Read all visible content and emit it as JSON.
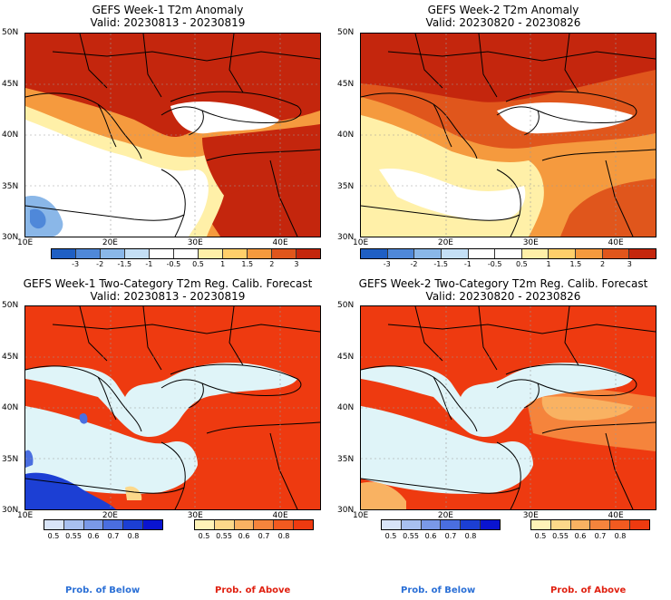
{
  "panels": [
    {
      "title": "GEFS Week-1 T2m Anomaly",
      "valid": "Valid: 20230813 - 20230819"
    },
    {
      "title": "GEFS Week-2 T2m Anomaly",
      "valid": "Valid: 20230820 - 20230826"
    },
    {
      "title": "GEFS Week-1 Two-Category T2m Reg. Calib. Forecast",
      "valid": "Valid: 20230813 - 20230819"
    },
    {
      "title": "GEFS Week-2 Two-Category T2m Reg. Calib. Forecast",
      "valid": "Valid: 20230820 - 20230826"
    }
  ],
  "axes": {
    "lat_labels": [
      "50N",
      "45N",
      "40N",
      "35N",
      "30N"
    ],
    "lon_labels": [
      "10E",
      "20E",
      "30E",
      "40E"
    ]
  },
  "anomaly_colorbar": {
    "ticks": [
      "-3",
      "-2",
      "-1.5",
      "-1",
      "-0.5",
      "0.5",
      "1",
      "1.5",
      "2",
      "3"
    ],
    "colors": [
      "#1f5fc4",
      "#4f88d9",
      "#8ab7e8",
      "#c4dff5",
      "#ffffff",
      "#ffffff",
      "#fff0a8",
      "#ffcf6a",
      "#f59a3e",
      "#e0561c",
      "#c4260d"
    ]
  },
  "prob_colorbars": {
    "below_ticks": [
      "0.5",
      "0.55",
      "0.6",
      "0.7",
      "0.8"
    ],
    "above_ticks": [
      "0.5",
      "0.55",
      "0.6",
      "0.7",
      "0.8"
    ],
    "below_colors": [
      "#d8e4f8",
      "#a8c0f0",
      "#7a99e8",
      "#4a6ee0",
      "#1c3fd4",
      "#0a14d0"
    ],
    "above_colors": [
      "#fff3b8",
      "#fcd88a",
      "#f9b262",
      "#f5843c",
      "#f25a20",
      "#ee3a10"
    ]
  },
  "legend": {
    "below": "Prob. of Below",
    "above": "Prob. of Above",
    "below_color": "#2a6fd6",
    "above_color": "#e02010"
  },
  "colors": {
    "sea_light": "#dff4f8",
    "anom_dark_red": "#c4260d",
    "anom_red": "#e0561c",
    "anom_orange": "#f59a3e",
    "anom_yellow": "#fff0a8",
    "prob_red": "#ee3a10"
  }
}
